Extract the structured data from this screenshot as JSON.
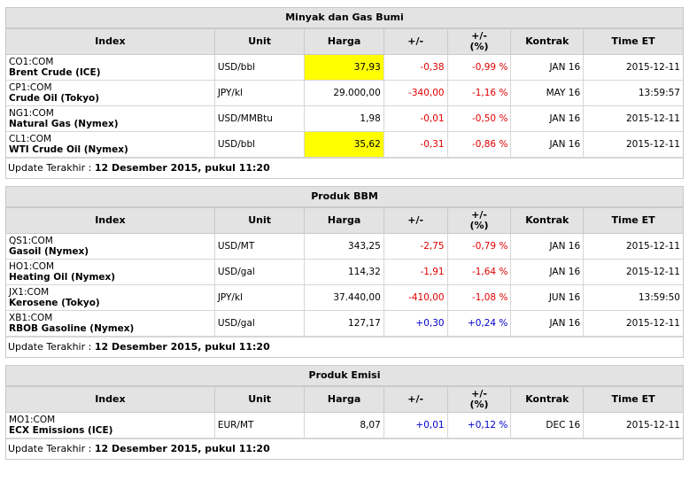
{
  "headers": {
    "index": "Index",
    "unit": "Unit",
    "harga": "Harga",
    "chg": "+/-",
    "pct_line1": "+/-",
    "pct_line2": "(%)",
    "kontrak": "Kontrak",
    "time": "Time ET"
  },
  "update_label": "Update Terakhir : ",
  "update_value": "12 Desember 2015, pukul 11:20",
  "sections": [
    {
      "title": "Minyak dan Gas Bumi",
      "rows": [
        {
          "code": "CO1:COM",
          "name": "Brent Crude (ICE)",
          "unit": "USD/bbl",
          "harga": "37,93",
          "highlight": true,
          "chg": "-0,38",
          "pct": "-0,99 %",
          "dir": "neg",
          "kontrak": "JAN 16",
          "time": "2015-12-11"
        },
        {
          "code": "CP1:COM",
          "name": "Crude Oil (Tokyo)",
          "unit": "JPY/kl",
          "harga": "29.000,00",
          "highlight": false,
          "chg": "-340,00",
          "pct": "-1,16 %",
          "dir": "neg",
          "kontrak": "MAY 16",
          "time": "13:59:57"
        },
        {
          "code": "NG1:COM",
          "name": "Natural Gas (Nymex)",
          "unit": "USD/MMBtu",
          "harga": "1,98",
          "highlight": false,
          "chg": "-0,01",
          "pct": "-0,50 %",
          "dir": "neg",
          "kontrak": "JAN 16",
          "time": "2015-12-11"
        },
        {
          "code": "CL1:COM",
          "name": "WTI Crude Oil (Nymex)",
          "unit": "USD/bbl",
          "harga": "35,62",
          "highlight": true,
          "chg": "-0,31",
          "pct": "-0,86 %",
          "dir": "neg",
          "kontrak": "JAN 16",
          "time": "2015-12-11"
        }
      ]
    },
    {
      "title": "Produk BBM",
      "rows": [
        {
          "code": "QS1:COM",
          "name": "Gasoil (Nymex)",
          "unit": "USD/MT",
          "harga": "343,25",
          "highlight": false,
          "chg": "-2,75",
          "pct": "-0,79 %",
          "dir": "neg",
          "kontrak": "JAN 16",
          "time": "2015-12-11"
        },
        {
          "code": "HO1:COM",
          "name": "Heating Oil (Nymex)",
          "unit": "USD/gal",
          "harga": "114,32",
          "highlight": false,
          "chg": "-1,91",
          "pct": "-1,64 %",
          "dir": "neg",
          "kontrak": "JAN 16",
          "time": "2015-12-11"
        },
        {
          "code": "JX1:COM",
          "name": "Kerosene (Tokyo)",
          "unit": "JPY/kl",
          "harga": "37.440,00",
          "highlight": false,
          "chg": "-410,00",
          "pct": "-1,08 %",
          "dir": "neg",
          "kontrak": "JUN 16",
          "time": "13:59:50"
        },
        {
          "code": "XB1:COM",
          "name": "RBOB Gasoline (Nymex)",
          "unit": "USD/gal",
          "harga": "127,17",
          "highlight": false,
          "chg": "+0,30",
          "pct": "+0,24 %",
          "dir": "pos",
          "kontrak": "JAN 16",
          "time": "2015-12-11"
        }
      ]
    },
    {
      "title": "Produk Emisi",
      "rows": [
        {
          "code": "MO1:COM",
          "name": "ECX Emissions (ICE)",
          "unit": "EUR/MT",
          "harga": "8,07",
          "highlight": false,
          "chg": "+0,01",
          "pct": "+0,12 %",
          "dir": "pos",
          "kontrak": "DEC 16",
          "time": "2015-12-11"
        }
      ]
    }
  ]
}
